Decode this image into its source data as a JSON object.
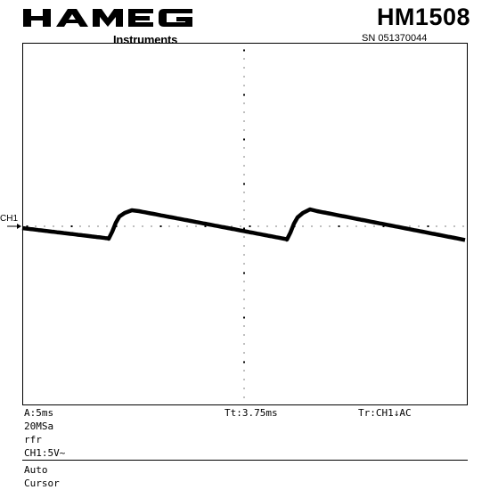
{
  "header": {
    "brand_logo_text": "HAMEG",
    "brand_sub": "Instruments",
    "model": "HM1508",
    "serial": "SN 051370044"
  },
  "screen": {
    "channel_marker": "CH1",
    "timebase": "A:5ms",
    "sample_rate": "20MSa",
    "mode_flag": "rfr",
    "channel_setting": "CH1:5V~",
    "trigger_time": "Tt:3.75ms",
    "trigger_source": "Tr:CH1↓AC",
    "menu_auto": "Auto",
    "menu_cursor": "Cursor"
  },
  "colors": {
    "trace": "#000000",
    "graticule": "#000000",
    "background": "#ffffff"
  }
}
